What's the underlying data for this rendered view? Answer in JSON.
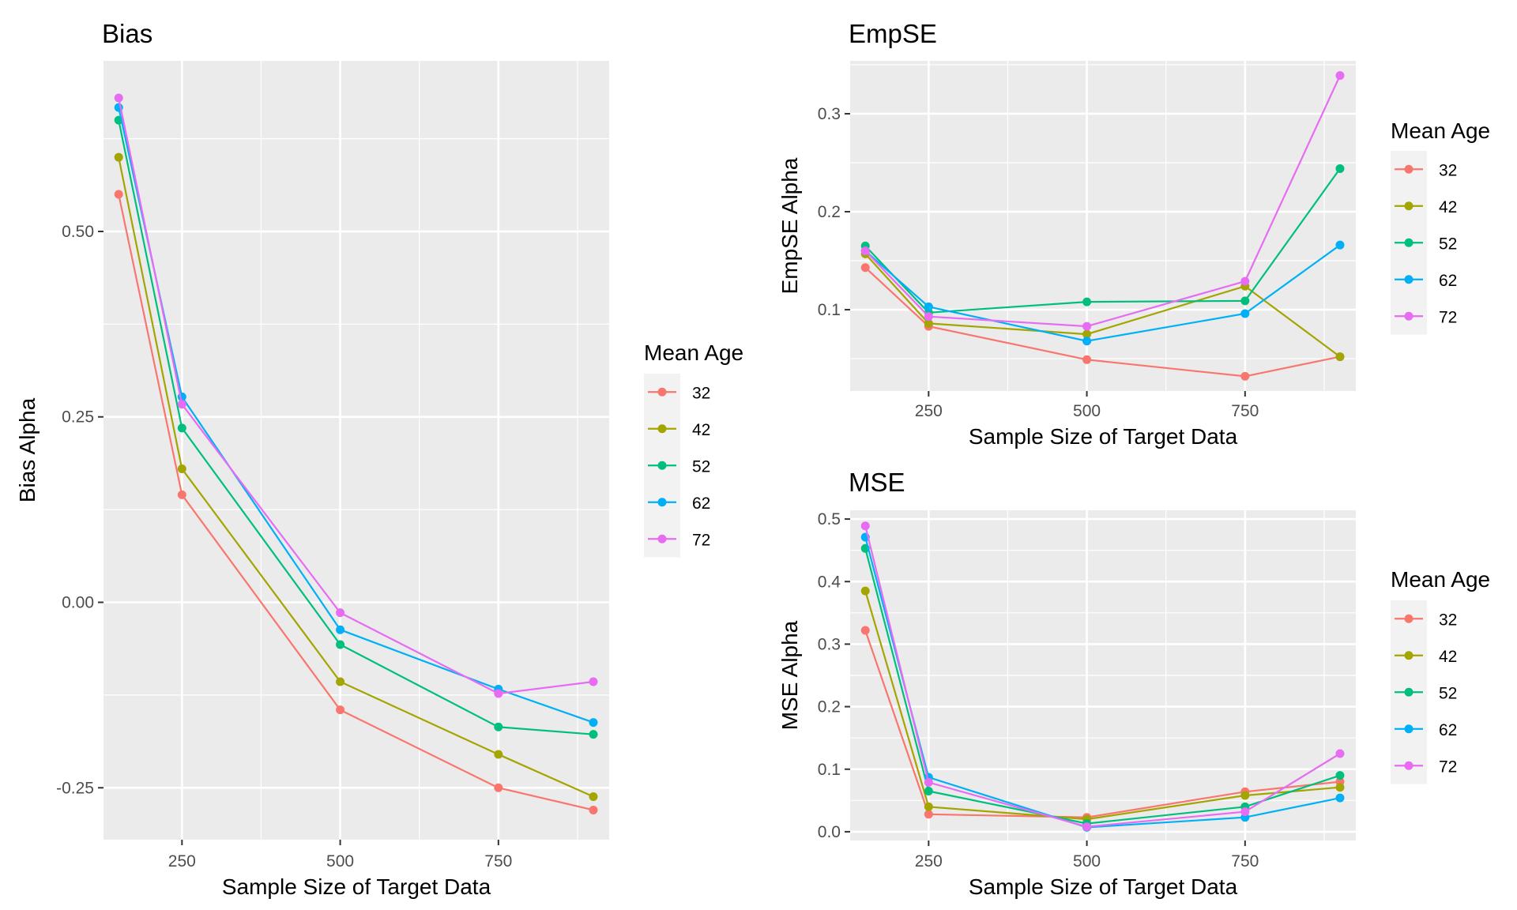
{
  "colors": {
    "32": "#F8766D",
    "42": "#A3A500",
    "52": "#00BF7D",
    "62": "#00B0F6",
    "72": "#E76BF3",
    "panel_bg": "#EBEBEB",
    "grid": "#FFFFFF",
    "tick_text": "#4D4D4D"
  },
  "chart_data": [
    {
      "type": "line",
      "title": "Bias",
      "xlabel": "Sample Size of Target Data",
      "ylabel": "Bias Alpha",
      "xlim": [
        126,
        925
      ],
      "ylim": [
        -0.32,
        0.73
      ],
      "xticks": [
        250,
        500,
        750
      ],
      "xtick_labels": [
        "250",
        "500",
        "750"
      ],
      "yticks": [
        -0.25,
        0,
        0.25,
        0.5
      ],
      "ytick_labels": [
        "-0.25",
        "0.00",
        "0.25",
        "0.50"
      ],
      "grid": true,
      "legend_title": "Mean Age",
      "legend_position": "right",
      "x": [
        150,
        250,
        500,
        750,
        900
      ],
      "series": [
        {
          "name": "32",
          "values": [
            0.55,
            0.145,
            -0.145,
            -0.25,
            -0.28
          ]
        },
        {
          "name": "42",
          "values": [
            0.6,
            0.18,
            -0.107,
            -0.205,
            -0.262
          ]
        },
        {
          "name": "52",
          "values": [
            0.65,
            0.235,
            -0.057,
            -0.168,
            -0.178
          ]
        },
        {
          "name": "62",
          "values": [
            0.667,
            0.277,
            -0.037,
            -0.117,
            -0.162
          ]
        },
        {
          "name": "72",
          "values": [
            0.68,
            0.267,
            -0.014,
            -0.123,
            -0.107
          ]
        }
      ]
    },
    {
      "type": "line",
      "title": "EmpSE",
      "xlabel": "Sample Size of Target Data",
      "ylabel": "EmpSE Alpha",
      "xlim": [
        126,
        925
      ],
      "ylim": [
        0.017,
        0.354
      ],
      "xticks": [
        250,
        500,
        750
      ],
      "xtick_labels": [
        "250",
        "500",
        "750"
      ],
      "yticks": [
        0.1,
        0.2,
        0.3
      ],
      "ytick_labels": [
        "0.1",
        "0.2",
        "0.3"
      ],
      "grid": true,
      "legend_title": "Mean Age",
      "legend_position": "right",
      "x": [
        150,
        250,
        500,
        750,
        900
      ],
      "series": [
        {
          "name": "32",
          "values": [
            0.143,
            0.083,
            0.049,
            0.032,
            0.052
          ]
        },
        {
          "name": "42",
          "values": [
            0.157,
            0.086,
            0.075,
            0.124,
            0.052
          ]
        },
        {
          "name": "52",
          "values": [
            0.165,
            0.097,
            0.108,
            0.109,
            0.244
          ]
        },
        {
          "name": "62",
          "values": [
            0.16,
            0.103,
            0.068,
            0.096,
            0.166
          ]
        },
        {
          "name": "72",
          "values": [
            0.16,
            0.093,
            0.083,
            0.129,
            0.339
          ]
        }
      ]
    },
    {
      "type": "line",
      "title": "MSE",
      "xlabel": "Sample Size of Target Data",
      "ylabel": "MSE Alpha",
      "xlim": [
        126,
        925
      ],
      "ylim": [
        -0.014,
        0.514
      ],
      "xticks": [
        250,
        500,
        750
      ],
      "xtick_labels": [
        "250",
        "500",
        "750"
      ],
      "yticks": [
        0,
        0.1,
        0.2,
        0.3,
        0.4,
        0.5
      ],
      "ytick_labels": [
        "0.0",
        "0.1",
        "0.2",
        "0.3",
        "0.4",
        "0.5"
      ],
      "grid": true,
      "legend_title": "Mean Age",
      "legend_position": "right",
      "x": [
        150,
        250,
        500,
        750,
        900
      ],
      "series": [
        {
          "name": "32",
          "values": [
            0.322,
            0.028,
            0.023,
            0.064,
            0.08
          ]
        },
        {
          "name": "42",
          "values": [
            0.385,
            0.04,
            0.02,
            0.058,
            0.071
          ]
        },
        {
          "name": "52",
          "values": [
            0.453,
            0.065,
            0.013,
            0.04,
            0.09
          ]
        },
        {
          "name": "62",
          "values": [
            0.471,
            0.087,
            0.007,
            0.023,
            0.054
          ]
        },
        {
          "name": "72",
          "values": [
            0.489,
            0.079,
            0.008,
            0.032,
            0.125
          ]
        }
      ]
    }
  ]
}
